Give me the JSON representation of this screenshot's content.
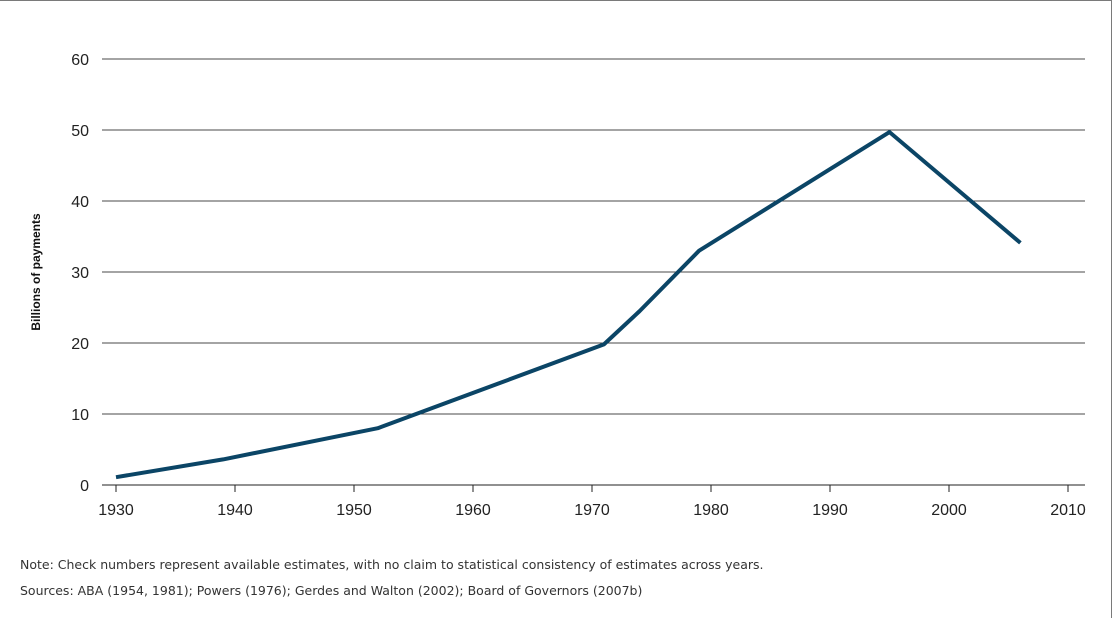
{
  "chart_data": {
    "type": "line",
    "title": "",
    "xlabel": "",
    "ylabel": "Billions of payments",
    "xlim": [
      1930,
      2010
    ],
    "ylim": [
      0,
      60
    ],
    "x_ticks": [
      "1930",
      "1940",
      "1950",
      "1960",
      "1970",
      "1980",
      "1990",
      "2000",
      "2010"
    ],
    "y_ticks": [
      "0",
      "10",
      "20",
      "30",
      "40",
      "50",
      "60"
    ],
    "grid": "horizontal",
    "line_color": "#0b4566",
    "series": [
      {
        "x": [
          1930,
          1939,
          1952,
          1971,
          1974,
          1979,
          1995,
          2006
        ],
        "y": [
          1.1,
          3.6,
          8.0,
          19.8,
          24.5,
          33.0,
          49.7,
          34.1
        ]
      }
    ]
  },
  "footnotes": {
    "note": "Note: Check numbers represent available estimates, with no claim to statistical consistency of estimates across years.",
    "sources": "Sources: ABA (1954, 1981); Powers (1976); Gerdes and Walton (2002); Board of Governors (2007b)"
  }
}
